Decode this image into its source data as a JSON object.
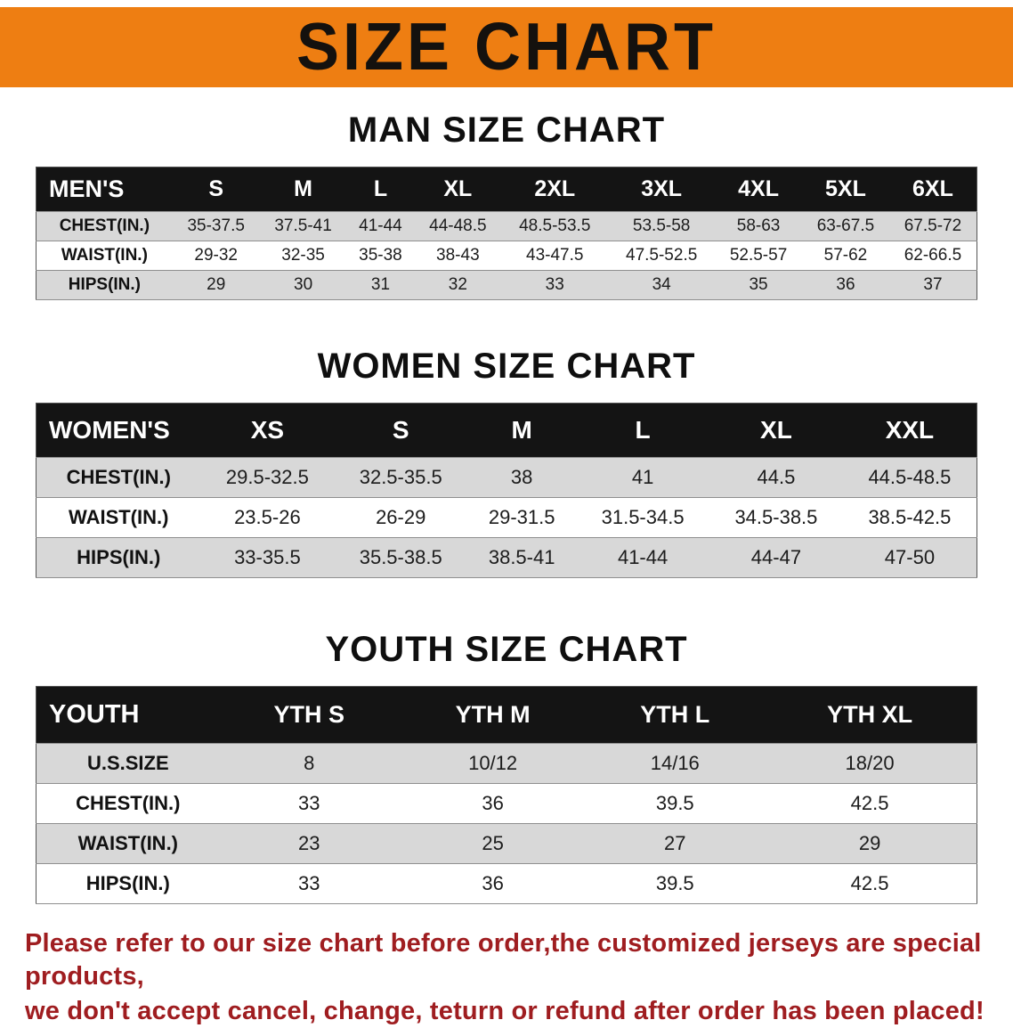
{
  "banner": {
    "title": "SIZE CHART"
  },
  "colors": {
    "banner_bg": "#ee7e12",
    "table_header_bg": "#141414",
    "table_header_text": "#ffffff",
    "row_stripe": "#d8d8d8",
    "footer_text": "#9f1d20"
  },
  "sections": [
    {
      "id": "men",
      "heading": "MAN SIZE CHART",
      "table": {
        "header": [
          "MEN'S",
          "S",
          "M",
          "L",
          "XL",
          "2XL",
          "3XL",
          "4XL",
          "5XL",
          "6XL"
        ],
        "rows": [
          [
            "CHEST(IN.)",
            "35-37.5",
            "37.5-41",
            "41-44",
            "44-48.5",
            "48.5-53.5",
            "53.5-58",
            "58-63",
            "63-67.5",
            "67.5-72"
          ],
          [
            "WAIST(IN.)",
            "29-32",
            "32-35",
            "35-38",
            "38-43",
            "43-47.5",
            "47.5-52.5",
            "52.5-57",
            "57-62",
            "62-66.5"
          ],
          [
            "HIPS(IN.)",
            "29",
            "30",
            "31",
            "32",
            "33",
            "34",
            "35",
            "36",
            "37"
          ]
        ]
      }
    },
    {
      "id": "women",
      "heading": "WOMEN SIZE CHART",
      "table": {
        "header": [
          "WOMEN'S",
          "XS",
          "S",
          "M",
          "L",
          "XL",
          "XXL"
        ],
        "rows": [
          [
            "CHEST(IN.)",
            "29.5-32.5",
            "32.5-35.5",
            "38",
            "41",
            "44.5",
            "44.5-48.5"
          ],
          [
            "WAIST(IN.)",
            "23.5-26",
            "26-29",
            "29-31.5",
            "31.5-34.5",
            "34.5-38.5",
            "38.5-42.5"
          ],
          [
            "HIPS(IN.)",
            "33-35.5",
            "35.5-38.5",
            "38.5-41",
            "41-44",
            "44-47",
            "47-50"
          ]
        ]
      }
    },
    {
      "id": "youth",
      "heading": "YOUTH SIZE CHART",
      "table": {
        "header": [
          "YOUTH",
          "YTH S",
          "YTH M",
          "YTH L",
          "YTH XL"
        ],
        "rows": [
          [
            "U.S.SIZE",
            "8",
            "10/12",
            "14/16",
            "18/20"
          ],
          [
            "CHEST(IN.)",
            "33",
            "36",
            "39.5",
            "42.5"
          ],
          [
            "WAIST(IN.)",
            "23",
            "25",
            "27",
            "29"
          ],
          [
            "HIPS(IN.)",
            "33",
            "36",
            "39.5",
            "42.5"
          ]
        ]
      }
    }
  ],
  "footer": {
    "lines": [
      "Please refer to our size chart before order,the customized jerseys are special products,",
      "we don't accept cancel, change, teturn or refund after order has been placed!"
    ]
  }
}
